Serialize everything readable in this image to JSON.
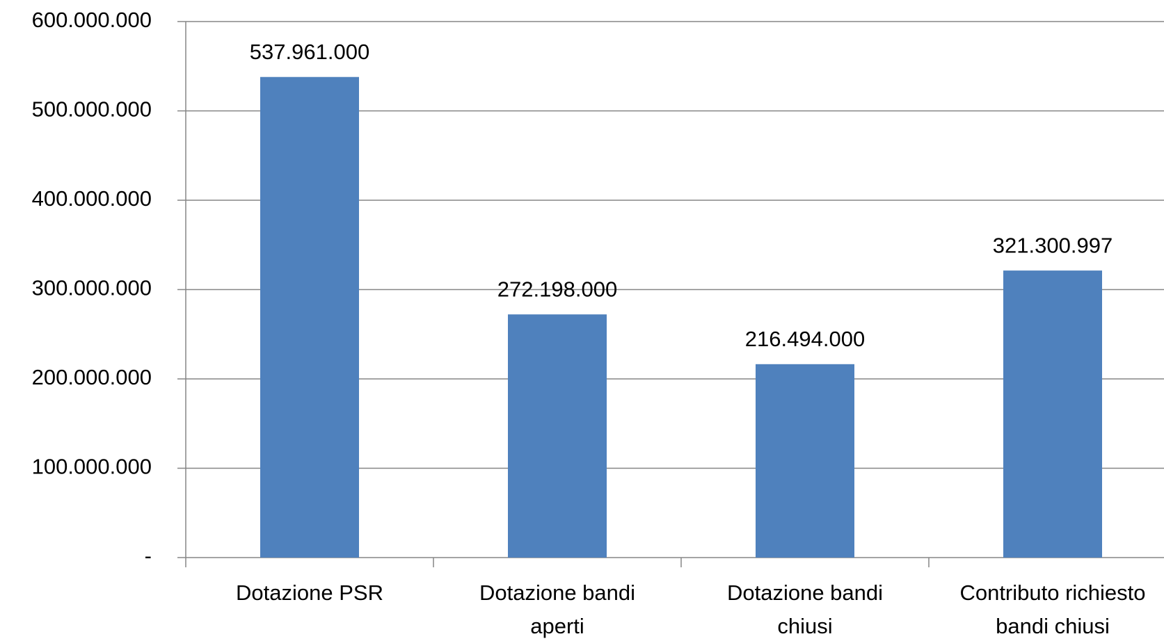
{
  "chart_data": {
    "type": "bar",
    "categories": [
      "Dotazione PSR",
      "Dotazione bandi aperti",
      "Dotazione bandi chiusi",
      "Contributo richiesto bandi chiusi"
    ],
    "values": [
      537961000,
      272198000,
      216494000,
      321300997
    ],
    "value_labels": [
      "537.961.000",
      "272.198.000",
      "216.494.000",
      "321.300.997"
    ],
    "color": "#4f81bd",
    "ylim": [
      0,
      600000000
    ],
    "yticks": [
      {
        "value": 0,
        "label": "-"
      },
      {
        "value": 100000000,
        "label": "100.000.000"
      },
      {
        "value": 200000000,
        "label": "200.000.000"
      },
      {
        "value": 300000000,
        "label": "300.000.000"
      },
      {
        "value": 400000000,
        "label": "400.000.000"
      },
      {
        "value": 500000000,
        "label": "500.000.000"
      },
      {
        "value": 600000000,
        "label": "600.000.000"
      }
    ],
    "grid": true
  }
}
